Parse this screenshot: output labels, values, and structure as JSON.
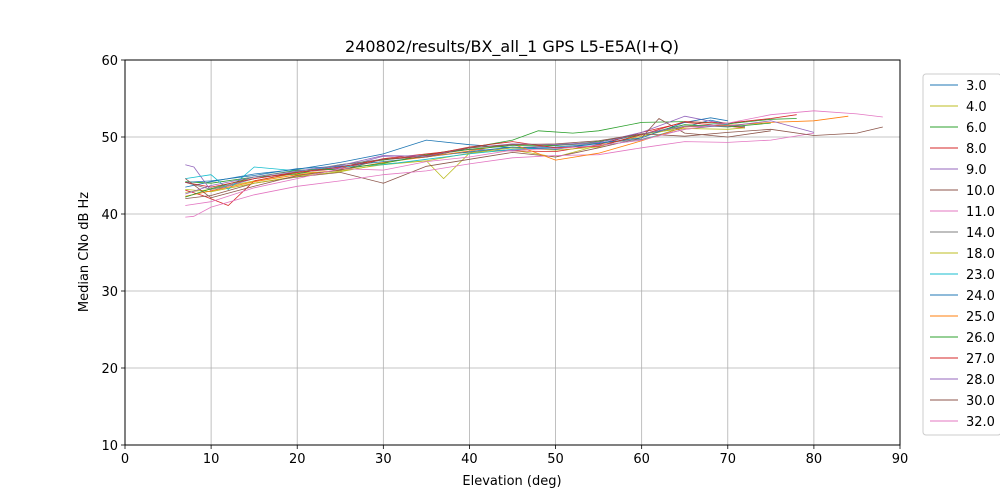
{
  "chart_data": {
    "type": "line",
    "title": "240802/results/BX_all_1 GPS L5-E5A(I+Q)",
    "xlabel": "Elevation (deg)",
    "ylabel": "Median CNo dB Hz",
    "xlim": [
      0,
      90
    ],
    "ylim": [
      10,
      60
    ],
    "xticks": [
      "0",
      "10",
      "20",
      "30",
      "40",
      "50",
      "60",
      "70",
      "80",
      "90"
    ],
    "yticks": [
      "10",
      "20",
      "30",
      "40",
      "50",
      "60"
    ],
    "grid": true,
    "legend_position": "right",
    "series": [
      {
        "name": "3.0",
        "color": "#1f77b4",
        "x": [
          7,
          10,
          15,
          20,
          25,
          30,
          35,
          40,
          45,
          50,
          55,
          60,
          65,
          68,
          70,
          72
        ],
        "y": [
          43.5,
          44.2,
          45.2,
          45.8,
          46.7,
          47.8,
          49.6,
          49.0,
          48.6,
          48.7,
          49.1,
          50.4,
          51.3,
          52.2,
          51.7,
          52.0
        ]
      },
      {
        "name": "4.0",
        "color": "#bcbd22",
        "x": [
          7,
          10,
          15,
          20,
          25,
          30,
          35,
          37,
          40,
          45,
          50,
          55,
          60,
          65,
          70,
          72
        ],
        "y": [
          42.8,
          43.2,
          44.3,
          45.3,
          45.6,
          46.4,
          46.9,
          44.6,
          47.9,
          48.3,
          47.4,
          48.9,
          50.1,
          51.4,
          51.6,
          51.2
        ]
      },
      {
        "name": "6.0",
        "color": "#2ca02c",
        "x": [
          7,
          10,
          15,
          20,
          25,
          30,
          35,
          40,
          45,
          48,
          52,
          55,
          60,
          65,
          70,
          75,
          78
        ],
        "y": [
          44.2,
          44.0,
          44.8,
          45.2,
          46.4,
          47.0,
          47.7,
          48.6,
          49.6,
          50.8,
          50.5,
          50.8,
          51.9,
          52.0,
          51.7,
          52.3,
          52.4
        ]
      },
      {
        "name": "8.0",
        "color": "#d62728",
        "x": [
          7,
          9,
          12,
          15,
          20,
          25,
          30,
          35,
          40,
          45,
          50,
          55,
          60,
          65,
          70,
          72
        ],
        "y": [
          43.1,
          42.4,
          41.1,
          44.3,
          45.4,
          45.9,
          47.2,
          47.8,
          48.4,
          48.2,
          48.1,
          49.0,
          50.6,
          51.9,
          51.4,
          51.2
        ]
      },
      {
        "name": "9.0",
        "color": "#9467bd",
        "x": [
          7,
          8,
          10,
          15,
          20,
          25,
          30,
          35,
          40,
          45,
          50,
          55,
          60,
          65,
          70,
          72
        ],
        "y": [
          46.4,
          46.1,
          43.0,
          44.6,
          45.4,
          46.0,
          47.5,
          47.6,
          48.4,
          48.2,
          49.0,
          49.3,
          50.6,
          52.7,
          51.6,
          51.4
        ]
      },
      {
        "name": "10.0",
        "color": "#8c564b",
        "x": [
          7,
          10,
          15,
          20,
          25,
          30,
          35,
          40,
          45,
          50,
          55,
          60,
          62,
          65,
          70,
          75
        ],
        "y": [
          42.0,
          42.4,
          44.0,
          44.8,
          45.4,
          44.0,
          46.2,
          47.1,
          48.0,
          47.4,
          48.6,
          49.9,
          52.4,
          50.5,
          50.0,
          50.8
        ]
      },
      {
        "name": "11.0",
        "color": "#e377c2",
        "x": [
          7,
          8,
          10,
          15,
          20,
          25,
          30,
          35,
          40,
          45,
          50,
          55,
          60,
          65,
          70,
          75,
          80
        ],
        "y": [
          39.6,
          39.7,
          40.9,
          42.5,
          43.6,
          44.3,
          45.1,
          45.6,
          46.5,
          47.3,
          47.6,
          47.7,
          48.6,
          49.4,
          49.3,
          49.6,
          50.5
        ]
      },
      {
        "name": "14.0",
        "color": "#7f7f7f",
        "x": [
          7,
          10,
          15,
          20,
          25,
          30,
          35,
          40,
          45,
          50,
          55,
          60,
          65,
          70,
          72
        ],
        "y": [
          44.1,
          43.2,
          44.6,
          45.5,
          46.4,
          47.1,
          47.6,
          48.0,
          48.6,
          48.9,
          49.2,
          49.7,
          51.0,
          51.6,
          51.3
        ]
      },
      {
        "name": "18.0",
        "color": "#bcbd22",
        "x": [
          7,
          10,
          15,
          20,
          25,
          30,
          35,
          40,
          45,
          50,
          55,
          60,
          65,
          70,
          72
        ],
        "y": [
          43.2,
          42.9,
          44.0,
          44.9,
          45.5,
          46.5,
          46.9,
          47.9,
          48.6,
          48.3,
          48.7,
          50.4,
          51.1,
          51.0,
          51.2
        ]
      },
      {
        "name": "23.0",
        "color": "#17becf",
        "x": [
          7,
          10,
          12,
          15,
          20,
          25,
          30,
          35,
          40,
          45,
          50,
          55,
          60,
          65,
          70
        ],
        "y": [
          44.6,
          45.1,
          43.2,
          46.1,
          45.6,
          46.1,
          46.4,
          47.1,
          47.8,
          48.4,
          48.6,
          48.9,
          49.6,
          51.3,
          51.7
        ]
      },
      {
        "name": "24.0",
        "color": "#1f77b4",
        "x": [
          7,
          10,
          15,
          20,
          25,
          30,
          35,
          40,
          45,
          50,
          55,
          60,
          65,
          68,
          70
        ],
        "y": [
          44.1,
          44.3,
          45.0,
          45.9,
          46.2,
          46.8,
          47.4,
          48.1,
          48.7,
          48.4,
          49.2,
          49.9,
          51.9,
          52.5,
          52.1
        ]
      },
      {
        "name": "25.0",
        "color": "#ff7f0e",
        "x": [
          7,
          10,
          15,
          20,
          25,
          30,
          35,
          40,
          45,
          50,
          55,
          60,
          65,
          70,
          75,
          80,
          84
        ],
        "y": [
          42.3,
          43.0,
          44.2,
          45.1,
          45.7,
          46.7,
          47.4,
          48.2,
          49.1,
          47.0,
          47.9,
          49.5,
          51.3,
          51.5,
          51.9,
          52.1,
          52.7
        ]
      },
      {
        "name": "26.0",
        "color": "#2ca02c",
        "x": [
          7,
          10,
          15,
          20,
          25,
          30,
          35,
          40,
          45,
          50,
          55,
          60,
          65,
          70,
          75
        ],
        "y": [
          42.2,
          43.3,
          44.8,
          45.7,
          45.8,
          46.6,
          47.6,
          48.4,
          48.9,
          48.9,
          49.4,
          50.3,
          51.6,
          51.3,
          51.8
        ]
      },
      {
        "name": "27.0",
        "color": "#d62728",
        "x": [
          7,
          10,
          15,
          20,
          25,
          30,
          35,
          40,
          45,
          50,
          55,
          60,
          65,
          70,
          75,
          78
        ],
        "y": [
          44.1,
          43.5,
          44.6,
          45.4,
          46.1,
          47.1,
          47.6,
          48.7,
          49.4,
          48.6,
          48.8,
          50.3,
          52.0,
          51.8,
          52.4,
          52.9
        ]
      },
      {
        "name": "28.0",
        "color": "#9467bd",
        "x": [
          7,
          10,
          15,
          20,
          25,
          30,
          35,
          40,
          45,
          50,
          55,
          60,
          65,
          70,
          75,
          80
        ],
        "y": [
          42.6,
          43.7,
          44.8,
          45.6,
          46.3,
          47.6,
          47.5,
          48.6,
          49.1,
          49.0,
          49.3,
          50.4,
          51.4,
          51.4,
          52.1,
          50.6
        ]
      },
      {
        "name": "30.0",
        "color": "#8c564b",
        "x": [
          7,
          10,
          15,
          20,
          25,
          30,
          35,
          40,
          45,
          50,
          55,
          60,
          65,
          70,
          75,
          80,
          85,
          88
        ],
        "y": [
          44.6,
          42.1,
          43.6,
          45.0,
          45.7,
          47.1,
          47.4,
          48.6,
          49.0,
          49.1,
          49.5,
          50.4,
          50.1,
          50.6,
          51.0,
          50.2,
          50.5,
          51.3
        ]
      },
      {
        "name": "32.0",
        "color": "#e377c2",
        "x": [
          7,
          10,
          15,
          20,
          25,
          30,
          35,
          40,
          45,
          50,
          55,
          60,
          65,
          70,
          75,
          80,
          85,
          88
        ],
        "y": [
          41.1,
          41.6,
          43.4,
          44.6,
          45.9,
          45.7,
          46.8,
          47.4,
          48.3,
          48.5,
          48.9,
          49.6,
          51.0,
          51.8,
          52.9,
          53.4,
          53.0,
          52.6
        ]
      }
    ]
  }
}
